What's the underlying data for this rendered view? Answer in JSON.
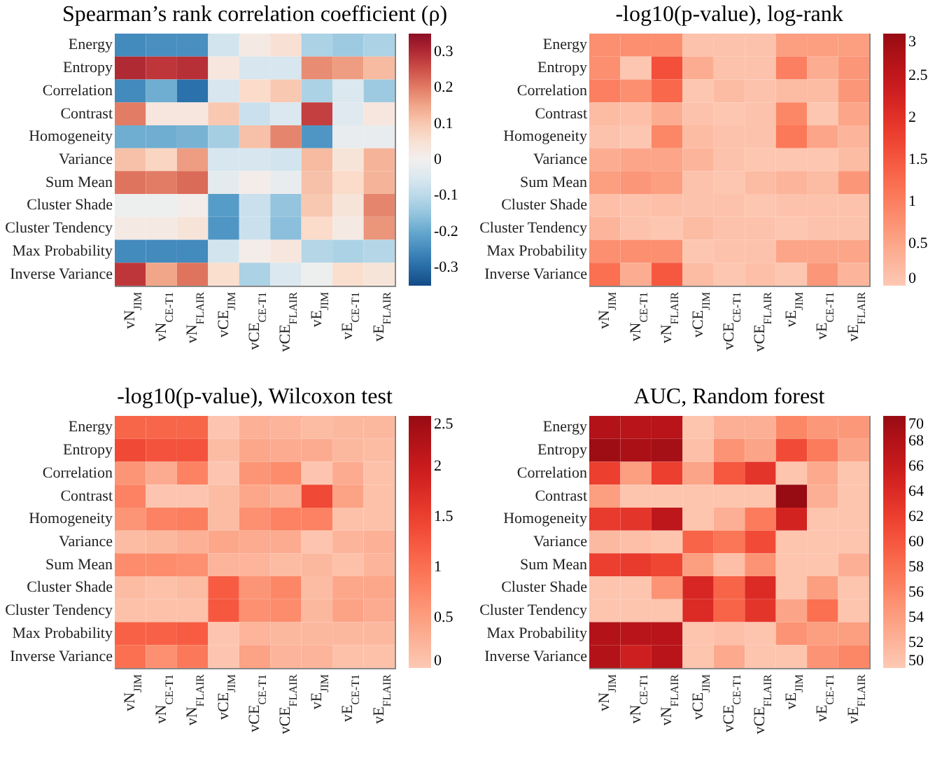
{
  "chart_data": [
    {
      "type": "heatmap",
      "title": "Spearman’s rank correlation coefficient (ρ)",
      "categories": [
        "vN$_{JIM}$",
        "vN$_{CE-T1}$",
        "vN$_{FLAIR}$",
        "vCE$_{JIM}$",
        "vCE$_{CE-T1}$",
        "vCE$_{FLAIR}$",
        "vE$_{JIM}$",
        "vE$_{CE-T1}$",
        "vE$_{FLAIR}$"
      ],
      "y_categories": [
        "Energy",
        "Entropy",
        "Correlation",
        "Contrast",
        "Homogeneity",
        "Variance",
        "Sum Mean",
        "Cluster Shade",
        "Cluster Tendency",
        "Max Probability",
        "Inverse Variance"
      ],
      "clim": [
        -0.35,
        0.35
      ],
      "cticks": [
        -0.3,
        -0.2,
        -0.1,
        0,
        0.1,
        0.2,
        0.3
      ],
      "cells": [
        [
          -0.25,
          -0.24,
          -0.24,
          -0.07,
          0.02,
          0.05,
          -0.12,
          -0.14,
          -0.12
        ],
        [
          0.3,
          0.28,
          0.29,
          0.03,
          -0.06,
          -0.06,
          0.18,
          0.16,
          0.12
        ],
        [
          -0.25,
          -0.19,
          -0.29,
          -0.06,
          0.07,
          0.1,
          -0.12,
          -0.05,
          -0.14
        ],
        [
          0.2,
          0.03,
          0.03,
          0.1,
          -0.08,
          -0.05,
          0.27,
          -0.04,
          0.03
        ],
        [
          -0.19,
          -0.19,
          -0.18,
          -0.13,
          0.11,
          0.19,
          -0.23,
          -0.02,
          -0.02
        ],
        [
          0.11,
          0.08,
          0.16,
          -0.06,
          -0.06,
          -0.07,
          0.12,
          0.04,
          0.13
        ],
        [
          0.21,
          0.2,
          0.22,
          -0.03,
          0.01,
          -0.02,
          0.11,
          0.07,
          0.13
        ],
        [
          -0.01,
          -0.01,
          0.01,
          -0.22,
          -0.08,
          -0.15,
          0.1,
          0.04,
          0.19
        ],
        [
          0.02,
          0.02,
          0.04,
          -0.23,
          -0.08,
          -0.16,
          0.07,
          0.02,
          0.17
        ],
        [
          -0.25,
          -0.25,
          -0.25,
          -0.07,
          0.01,
          0.03,
          -0.11,
          -0.12,
          -0.11
        ],
        [
          0.28,
          0.15,
          0.21,
          0.06,
          -0.12,
          -0.05,
          -0.01,
          0.06,
          0.04
        ]
      ]
    },
    {
      "type": "heatmap",
      "title": "-log10(p-value), log-rank",
      "categories": [
        "vN$_{JIM}$",
        "vN$_{CE-T1}$",
        "vN$_{FLAIR}$",
        "vCE$_{JIM}$",
        "vCE$_{CE-T1}$",
        "vCE$_{FLAIR}$",
        "vE$_{JIM}$",
        "vE$_{CE-T1}$",
        "vE$_{FLAIR}$"
      ],
      "y_categories": [
        "Energy",
        "Entropy",
        "Correlation",
        "Contrast",
        "Homogeneity",
        "Variance",
        "Sum Mean",
        "Cluster Shade",
        "Cluster Tendency",
        "Max Probability",
        "Inverse Variance"
      ],
      "clim": [
        0,
        3
      ],
      "cticks": [
        0,
        0.5,
        1,
        1.5,
        2,
        2.5,
        3
      ],
      "cells": [
        [
          0.8,
          0.8,
          0.8,
          0.1,
          0.1,
          0.1,
          0.6,
          0.6,
          0.6
        ],
        [
          0.8,
          0.05,
          1.6,
          0.4,
          0.1,
          0.1,
          1.0,
          0.4,
          0.7
        ],
        [
          1.0,
          0.8,
          1.3,
          0.05,
          0.2,
          0.1,
          0.2,
          0.2,
          0.7
        ],
        [
          0.2,
          0.15,
          0.4,
          0.1,
          0.05,
          0.1,
          0.9,
          0.05,
          0.5
        ],
        [
          0.1,
          0.05,
          0.9,
          0.2,
          0.1,
          0.1,
          1.1,
          0.5,
          0.3
        ],
        [
          0.4,
          0.5,
          0.5,
          0.3,
          0.1,
          0.05,
          0.05,
          0.05,
          0.2
        ],
        [
          0.6,
          0.7,
          0.6,
          0.1,
          0.05,
          0.2,
          0.3,
          0.2,
          0.7
        ],
        [
          0.15,
          0.1,
          0.15,
          0.1,
          0.1,
          0.05,
          0.1,
          0.1,
          0.1
        ],
        [
          0.3,
          0.1,
          0.05,
          0.2,
          0.1,
          0.1,
          0.05,
          0.1,
          0.1
        ],
        [
          0.8,
          0.8,
          0.8,
          0.05,
          0.1,
          0.1,
          0.5,
          0.5,
          0.5
        ],
        [
          1.2,
          0.4,
          1.5,
          0.2,
          0.05,
          0.15,
          0.05,
          0.7,
          0.3
        ]
      ]
    },
    {
      "type": "heatmap",
      "title": "-log10(p-value), Wilcoxon test",
      "categories": [
        "vN$_{JIM}$",
        "vN$_{CE-T1}$",
        "vN$_{FLAIR}$",
        "vCE$_{JIM}$",
        "vCE$_{CE-T1}$",
        "vCE$_{FLAIR}$",
        "vE$_{JIM}$",
        "vE$_{CE-T1}$",
        "vE$_{FLAIR}$"
      ],
      "y_categories": [
        "Energy",
        "Entropy",
        "Correlation",
        "Contrast",
        "Homogeneity",
        "Variance",
        "Sum Mean",
        "Cluster Shade",
        "Cluster Tendency",
        "Max Probability",
        "Inverse Variance"
      ],
      "clim": [
        0,
        2.5
      ],
      "cticks": [
        0,
        0.5,
        1,
        1.5,
        2,
        2.5
      ],
      "cells": [
        [
          1.1,
          1.1,
          1.1,
          0.05,
          0.3,
          0.25,
          0.15,
          0.2,
          0.2
        ],
        [
          1.4,
          1.3,
          1.3,
          0.15,
          0.4,
          0.35,
          0.35,
          0.2,
          0.15
        ],
        [
          0.6,
          0.35,
          0.8,
          0.05,
          0.6,
          0.7,
          0.05,
          0.35,
          0.1
        ],
        [
          0.8,
          0.05,
          0.05,
          0.15,
          0.4,
          0.3,
          1.4,
          0.45,
          0.1
        ],
        [
          0.6,
          0.8,
          0.85,
          0.15,
          0.65,
          0.8,
          0.8,
          0.1,
          0.1
        ],
        [
          0.15,
          0.2,
          0.3,
          0.4,
          0.35,
          0.35,
          0.05,
          0.25,
          0.3
        ],
        [
          0.7,
          0.7,
          0.65,
          0.25,
          0.25,
          0.15,
          0.2,
          0.1,
          0.25
        ],
        [
          0.15,
          0.1,
          0.15,
          1.2,
          0.6,
          0.75,
          0.15,
          0.4,
          0.4
        ],
        [
          0.1,
          0.1,
          0.1,
          1.25,
          0.65,
          0.7,
          0.2,
          0.45,
          0.35
        ],
        [
          1.15,
          1.15,
          1.2,
          0.05,
          0.25,
          0.2,
          0.2,
          0.2,
          0.2
        ],
        [
          1.0,
          0.65,
          0.9,
          0.05,
          0.45,
          0.25,
          0.25,
          0.1,
          0.1
        ]
      ]
    },
    {
      "type": "heatmap",
      "title": "AUC, Random forest",
      "categories": [
        "vN$_{JIM}$",
        "vN$_{CE-T1}$",
        "vN$_{FLAIR}$",
        "vCE$_{JIM}$",
        "vCE$_{CE-T1}$",
        "vCE$_{FLAIR}$",
        "vE$_{JIM}$",
        "vE$_{CE-T1}$",
        "vE$_{FLAIR}$"
      ],
      "y_categories": [
        "Energy",
        "Entropy",
        "Correlation",
        "Contrast",
        "Homogeneity",
        "Variance",
        "Sum Mean",
        "Cluster Shade",
        "Cluster Tendency",
        "Max Probability",
        "Inverse Variance"
      ],
      "clim": [
        50,
        70
      ],
      "cticks": [
        50,
        52,
        54,
        56,
        58,
        60,
        62,
        64,
        66,
        68,
        70
      ],
      "cells": [
        [
          68,
          67.5,
          67.5,
          50.5,
          52.5,
          52.5,
          56,
          54.5,
          54.5
        ],
        [
          69.5,
          68.5,
          69,
          51,
          55,
          53.5,
          61,
          57,
          53.5
        ],
        [
          62,
          54,
          62,
          53.5,
          60,
          63,
          50.5,
          53,
          50.5
        ],
        [
          54,
          50.5,
          50.5,
          50.5,
          50.5,
          50.5,
          70,
          52.5,
          50.5
        ],
        [
          62.5,
          63,
          67,
          50.5,
          52.5,
          57,
          65,
          50.5,
          50.5
        ],
        [
          51.5,
          51,
          50.5,
          59,
          57.5,
          61,
          50.5,
          50.5,
          50.5
        ],
        [
          62,
          62.5,
          61.5,
          54,
          51,
          55,
          50.5,
          50.5,
          52.5
        ],
        [
          50.5,
          50.5,
          55,
          64.5,
          59,
          64,
          50.5,
          54,
          50.5
        ],
        [
          50.5,
          50.5,
          50.5,
          64,
          59,
          63,
          53.5,
          58,
          50.5
        ],
        [
          68,
          67.5,
          67.5,
          50.5,
          51,
          50.5,
          55,
          54,
          54
        ],
        [
          68,
          65.5,
          67.5,
          50.5,
          53,
          50.5,
          50.5,
          55,
          56
        ]
      ]
    }
  ]
}
